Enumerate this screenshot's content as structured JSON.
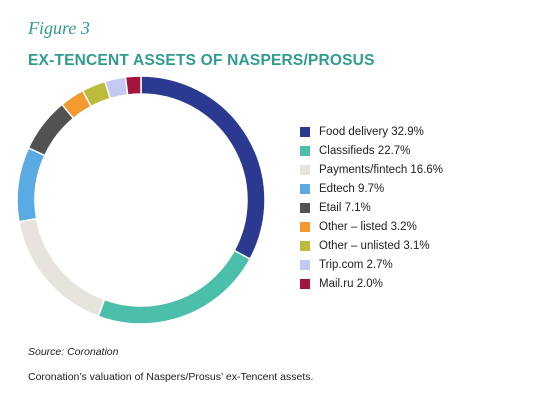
{
  "figure_label": "Figure 3",
  "title": "EX-TENCENT ASSETS OF NASPERS/PROSUS",
  "source": "Source: Coronation",
  "caption": "Coronation’s valuation of Naspers/Prosus’ ex-Tencent assets.",
  "colors": {
    "title": "#2f9c8f"
  },
  "chart_data": {
    "type": "pie",
    "style": "donut",
    "title": "",
    "legend_position": "right",
    "slices": [
      {
        "label": "Food delivery 32.9%",
        "name": "Food delivery",
        "value": 32.9,
        "color": "#2b3990"
      },
      {
        "label": "Classifieds 22.7%",
        "name": "Classifieds",
        "value": 22.7,
        "color": "#4cbfaa"
      },
      {
        "label": "Payments/fintech 16.6%",
        "name": "Payments/fintech",
        "value": 16.6,
        "color": "#e7e4dd"
      },
      {
        "label": "Edtech 9.7%",
        "name": "Edtech",
        "value": 9.7,
        "color": "#5aaae3"
      },
      {
        "label": "Etail 7.1%",
        "name": "Etail",
        "value": 7.1,
        "color": "#525252"
      },
      {
        "label": "Other – listed 3.2%",
        "name": "Other – listed",
        "value": 3.2,
        "color": "#f39a2f"
      },
      {
        "label": "Other – unlisted 3.1%",
        "name": "Other – unlisted",
        "value": 3.1,
        "color": "#bcbb3c"
      },
      {
        "label": "Trip.com 2.7%",
        "name": "Trip.com",
        "value": 2.7,
        "color": "#c5c8f0"
      },
      {
        "label": "Mail.ru 2.0%",
        "name": "Mail.ru",
        "value": 2.0,
        "color": "#a3143f"
      }
    ]
  }
}
